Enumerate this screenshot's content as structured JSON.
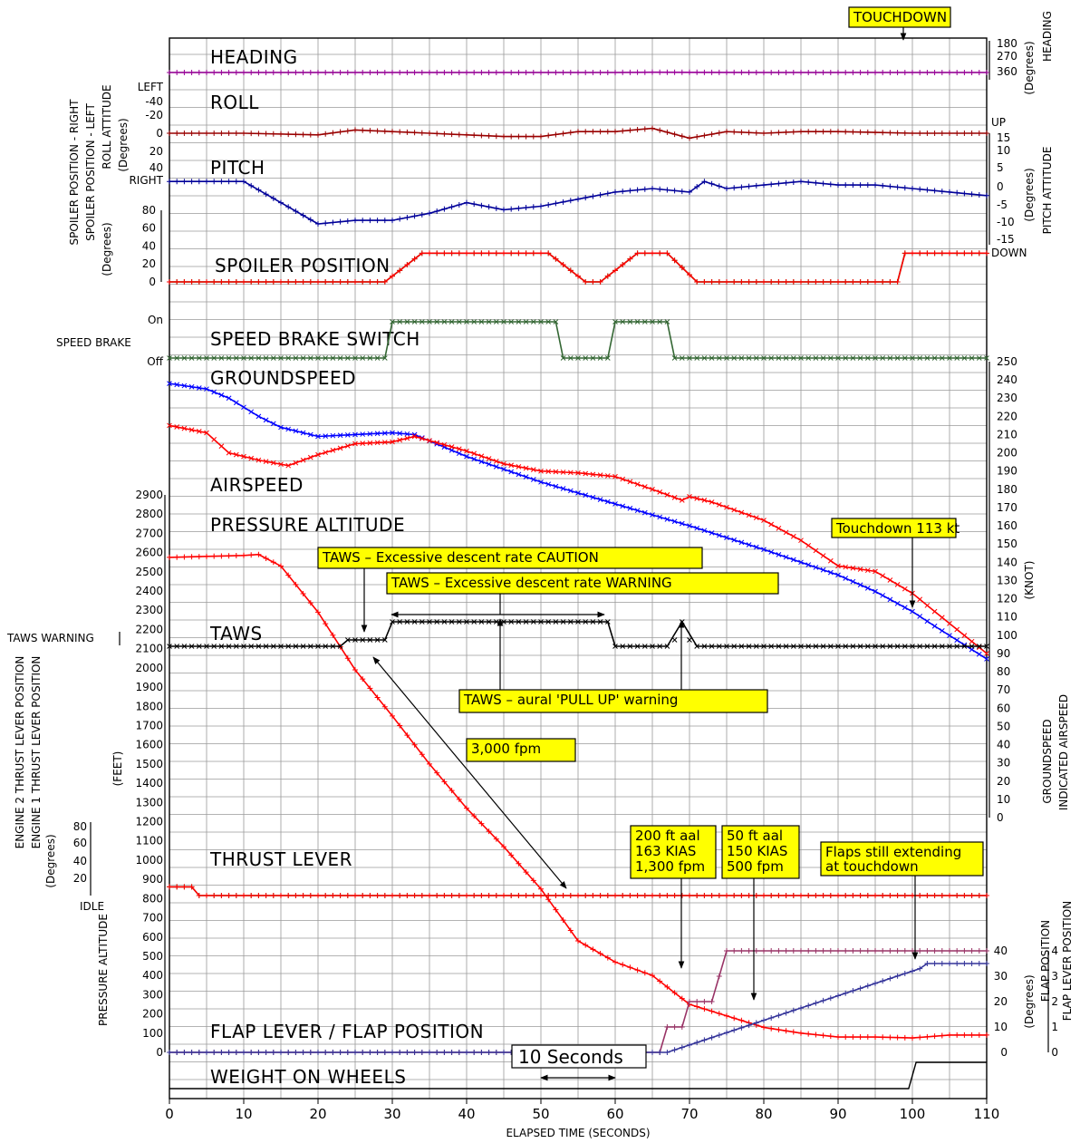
{
  "chart_data": {
    "type": "line",
    "x_axis": {
      "label": "ELAPSED TIME (SECONDS)",
      "range": [
        0,
        110
      ],
      "ticks": [
        0,
        10,
        20,
        30,
        40,
        50,
        60,
        70,
        80,
        90,
        100,
        110
      ]
    },
    "panels": {
      "heading": {
        "label": "HEADING",
        "right_axis": {
          "title": "HEADING",
          "units": "(Degrees)",
          "ticks": [
            "180",
            "270",
            "360"
          ]
        },
        "series": [
          {
            "name": "HEADING",
            "color": "#990099",
            "x": [
              0,
              20,
              40,
              60,
              65,
              80,
              100,
              110
            ],
            "y": [
              360,
              360,
              360,
              360,
              358,
              360,
              360,
              360
            ]
          }
        ]
      },
      "roll": {
        "label": "ROLL",
        "left_axis": {
          "title": "ROLL ATTITUDE",
          "units": "(Degrees)",
          "ticks": [
            "LEFT",
            "-40",
            "-20",
            "0",
            "20",
            "40",
            "RIGHT"
          ]
        },
        "series": [
          {
            "name": "ROLL ATTITUDE",
            "color": "#990000",
            "x": [
              0,
              10,
              20,
              25,
              30,
              35,
              40,
              45,
              50,
              55,
              60,
              65,
              70,
              75,
              80,
              85,
              90,
              95,
              100,
              105,
              110
            ],
            "y": [
              0,
              0,
              2,
              -4,
              -2,
              0,
              2,
              4,
              4,
              -2,
              -2,
              -6,
              6,
              -2,
              0,
              -2,
              -2,
              -1,
              0,
              0,
              0
            ]
          }
        ]
      },
      "pitch": {
        "label": "PITCH",
        "right_axis": {
          "title": "PITCH ATTITUDE",
          "units": "(Degrees)",
          "ticks": [
            "UP",
            "15",
            "10",
            "5",
            "0",
            "-5",
            "-10",
            "-15",
            "DOWN"
          ]
        },
        "series": [
          {
            "name": "PITCH ATTITUDE",
            "color": "#000099",
            "x": [
              0,
              5,
              10,
              15,
              20,
              25,
              30,
              35,
              40,
              45,
              50,
              55,
              60,
              65,
              70,
              72,
              75,
              80,
              85,
              90,
              95,
              100,
              105,
              110
            ],
            "y": [
              2,
              2,
              2,
              -4,
              -10,
              -9,
              -9,
              -7,
              -4,
              -6,
              -5,
              -3,
              -1,
              0,
              -1,
              2,
              0,
              1,
              2,
              1,
              1,
              0,
              -1,
              -2
            ]
          }
        ]
      },
      "spoiler": {
        "label": "SPOILER POSITION",
        "left_axis": {
          "units": "(Degrees)",
          "ticks": [
            "0",
            "20",
            "40",
            "60",
            "80"
          ]
        },
        "legend": [
          "SPOILER POSITION - LEFT",
          "SPOILER POSITION - RIGHT"
        ],
        "series": [
          {
            "name": "SPOILER POSITION - LEFT",
            "color": "#ff0000",
            "x": [
              0,
              29,
              34,
              51,
              56,
              58,
              63,
              67,
              71,
              73,
              98,
              99,
              110
            ],
            "y": [
              0,
              0,
              32,
              32,
              0,
              0,
              32,
              32,
              0,
              0,
              0,
              32,
              32
            ]
          },
          {
            "name": "SPOILER POSITION - RIGHT",
            "color": "#006600",
            "x": [
              0,
              29,
              34,
              51,
              56,
              58,
              63,
              67,
              71,
              73,
              98,
              99,
              110
            ],
            "y": [
              0,
              0,
              32,
              32,
              0,
              0,
              32,
              32,
              0,
              0,
              0,
              32,
              32
            ]
          }
        ]
      },
      "speed_brake": {
        "label": "SPEED BRAKE SWITCH",
        "left_axis": {
          "title": "SPEED BRAKE",
          "ticks": [
            "On",
            "Off"
          ]
        },
        "series": [
          {
            "name": "SPEED BRAKE",
            "color": "#336633",
            "x": [
              0,
              29,
              30,
              52,
              53,
              59,
              60,
              67,
              68,
              110
            ],
            "y": [
              0,
              0,
              1,
              1,
              0,
              0,
              1,
              1,
              0,
              0
            ]
          }
        ]
      },
      "speeds": {
        "labels": [
          "GROUNDSPEED",
          "AIRSPEED"
        ],
        "right_axis": {
          "units": "(KNOT)",
          "range": [
            0,
            250
          ],
          "legend": [
            "GROUNDSPEED",
            "INDICATED AIRSPEED"
          ]
        },
        "series": [
          {
            "name": "GROUNDSPEED",
            "color": "#0000ff",
            "x": [
              0,
              5,
              8,
              12,
              15,
              20,
              25,
              30,
              33,
              40,
              50,
              60,
              65,
              70,
              80,
              90,
              95,
              100,
              103,
              110
            ],
            "y": [
              238,
              235,
              230,
              220,
              214,
              209,
              210,
              211,
              210,
              198,
              184,
              172,
              166,
              160,
              147,
              133,
              124,
              113,
              105,
              87
            ]
          },
          {
            "name": "INDICATED AIRSPEED",
            "color": "#ff0000",
            "x": [
              0,
              5,
              8,
              12,
              16,
              20,
              25,
              30,
              33,
              40,
              45,
              50,
              55,
              60,
              65,
              69,
              70,
              73,
              80,
              85,
              90,
              95,
              100,
              103,
              110
            ],
            "y": [
              215,
              211,
              200,
              196,
              193,
              199,
              205,
              206,
              209,
              201,
              194,
              190,
              189,
              187,
              180,
              174,
              176,
              173,
              163,
              152,
              138,
              135,
              123,
              113,
              90
            ]
          }
        ]
      },
      "altitude": {
        "label": "PRESSURE ALTITUDE",
        "left_axis": {
          "title": "PRESSURE ALTITUDE",
          "units": "(FEET)",
          "range": [
            0,
            2900
          ],
          "ticks": [
            0,
            100,
            200,
            300,
            400,
            500,
            600,
            700,
            800,
            900,
            1000,
            1100,
            1200,
            1300,
            1400,
            1500,
            1600,
            1700,
            1800,
            1900,
            2000,
            2100,
            2200,
            2300,
            2400,
            2500,
            2600,
            2700,
            2800,
            2900
          ]
        },
        "series": [
          {
            "name": "PRESSURE ALTITUDE",
            "color": "#ff0000",
            "x": [
              0,
              5,
              10,
              12,
              15,
              20,
              25,
              30,
              35,
              40,
              45,
              50,
              55,
              60,
              65,
              70,
              75,
              80,
              85,
              90,
              95,
              100,
              105,
              110
            ],
            "y": [
              2575,
              2580,
              2585,
              2590,
              2530,
              2290,
              1990,
              1750,
              1500,
              1270,
              1070,
              850,
              580,
              470,
              400,
              250,
              190,
              130,
              100,
              80,
              80,
              75,
              90,
              90
            ]
          }
        ]
      },
      "taws": {
        "label": "TAWS",
        "left_axis": {
          "title": "TAWS WARNING"
        },
        "series": [
          {
            "name": "TAWS WARNING",
            "color": "#000000",
            "x": [
              0,
              23,
              24,
              29,
              30,
              59,
              60,
              67,
              69,
              71,
              110
            ],
            "y": [
              0,
              0,
              1,
              1,
              2,
              2,
              0,
              0,
              2,
              0,
              0
            ]
          }
        ]
      },
      "thrust": {
        "label": "THRUST LEVER",
        "left_axis": {
          "units": "(Degrees)",
          "ticks": [
            "IDLE",
            "20",
            "40",
            "60",
            "80"
          ],
          "legend": [
            "ENGINE 1 THRUST LEVER POSITION",
            "ENGINE 2 THRUST LEVER POSITION"
          ]
        },
        "series": [
          {
            "name": "ENGINE 1 THRUST LEVER POSITION",
            "color": "#ff0000",
            "x": [
              0,
              3,
              4,
              110
            ],
            "y": [
              10,
              10,
              0,
              0
            ]
          },
          {
            "name": "ENGINE 2 THRUST LEVER POSITION",
            "color": "#556b2f",
            "x": [
              0,
              3,
              4,
              110
            ],
            "y": [
              10,
              10,
              0,
              0
            ]
          }
        ]
      },
      "flaps": {
        "label": "FLAP LEVER / FLAP POSITION",
        "right_axis": {
          "units": "(Degrees)",
          "flap_position_ticks": [
            "0",
            "10",
            "20",
            "30",
            "40"
          ],
          "flap_lever_ticks": [
            "0",
            "1",
            "2",
            "3",
            "4"
          ],
          "legend": [
            "FLAP POSITION",
            "FLAP LEVER POSITION"
          ]
        },
        "series": [
          {
            "name": "FLAP LEVER POSITION",
            "color": "#993366",
            "x": [
              0,
              66,
              67,
              69,
              70,
              73,
              75,
              110
            ],
            "y": [
              0,
              0,
              1,
              1,
              2,
              2,
              4,
              4
            ]
          },
          {
            "name": "FLAP POSITION",
            "color": "#333399",
            "x": [
              0,
              66,
              67,
              101,
              102,
              110
            ],
            "y": [
              0,
              0,
              0,
              33,
              35,
              35
            ]
          }
        ]
      },
      "wow": {
        "label": "WEIGHT ON WHEELS",
        "series": [
          {
            "name": "WEIGHT ON WHEELS",
            "color": "#000000",
            "x": [
              0,
              99.5,
              100.5,
              110
            ],
            "y": [
              0,
              0,
              1,
              1
            ]
          }
        ]
      }
    },
    "annotations": {
      "touchdown": "TOUCHDOWN",
      "touchdown_speed": "Touchdown 113 kt",
      "taws_caution": "TAWS – Excessive descent rate CAUTION",
      "taws_warning": "TAWS – Excessive descent rate WARNING",
      "taws_pullup": "TAWS – aural 'PULL UP' warning",
      "descent_rate": "3,000 fpm",
      "pt200": [
        "200 ft aal",
        "163 KIAS",
        "1,300 fpm"
      ],
      "pt50": [
        "50 ft aal",
        "150 KIAS",
        "500 fpm"
      ],
      "flaps_note": [
        "Flaps still extending",
        "at touchdown"
      ],
      "ten_seconds": "10 Seconds"
    }
  }
}
